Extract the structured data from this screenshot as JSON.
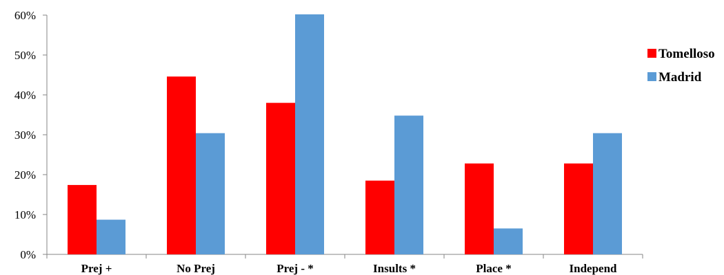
{
  "chart_data": {
    "type": "bar",
    "categories": [
      "Prej +",
      "No Prej",
      "Prej - *",
      "Insults *",
      "Place *",
      "Independ"
    ],
    "series": [
      {
        "name": "Tomelloso",
        "color": "#ff0000",
        "values": [
          0.174,
          0.446,
          0.38,
          0.185,
          0.228,
          0.228
        ]
      },
      {
        "name": "Madrid",
        "color": "#5b9bd5",
        "values": [
          0.087,
          0.304,
          0.602,
          0.348,
          0.065,
          0.304
        ]
      }
    ],
    "yticks": [
      "0%",
      "10%",
      "20%",
      "30%",
      "40%",
      "50%",
      "60%"
    ],
    "ylim": [
      0,
      0.6
    ],
    "grid": false,
    "legend_position": "right"
  }
}
